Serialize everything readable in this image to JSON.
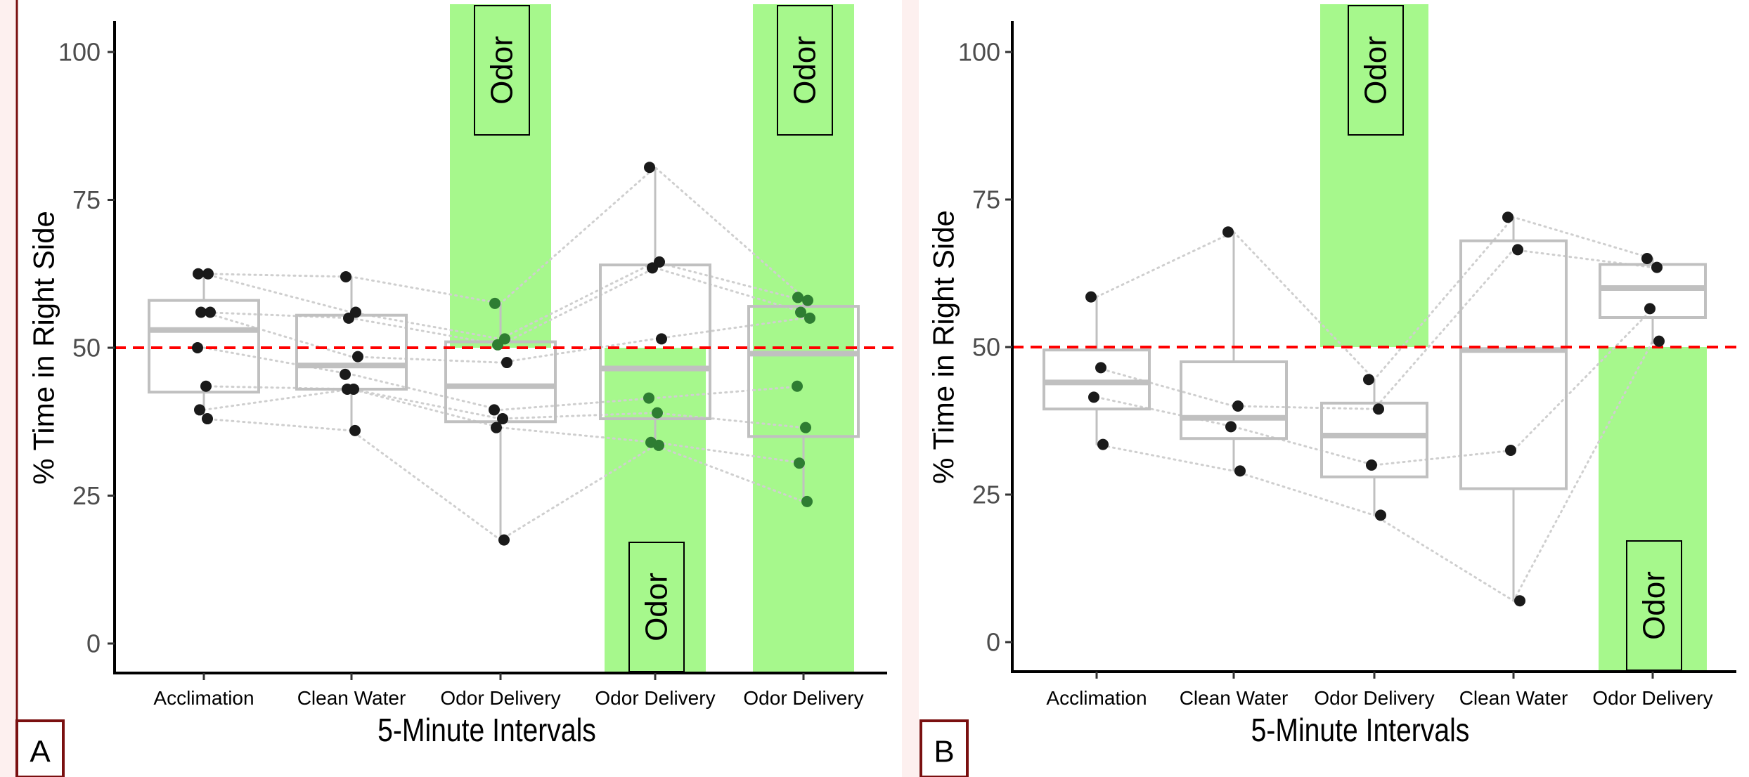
{
  "figure": {
    "colors": {
      "odor_band": "#a6f88c",
      "box": "#c0c0c0",
      "median": "#c0c0c0",
      "point": "#1a1a1a",
      "point_in_odor": "#2e7d32",
      "reference_line": "#ff0000",
      "panel_label_border": "#7a1010",
      "outer_tint": "#fdf0ef"
    }
  },
  "chart_data": [
    {
      "panel_label": "A",
      "type": "box",
      "xlabel": "5-Minute Intervals",
      "ylabel": "% Time in Right Side",
      "ylim": [
        -5,
        108
      ],
      "yticks": [
        0,
        25,
        50,
        75,
        100
      ],
      "reference_line": 50,
      "categories": [
        "Acclimation",
        "Clean Water",
        "Odor Delivery",
        "Odor Delivery",
        "Odor Delivery"
      ],
      "boxes": [
        {
          "q1": 42.5,
          "median": 53,
          "q3": 58,
          "whisker_low": 38,
          "whisker_high": 63
        },
        {
          "q1": 43,
          "median": 47,
          "q3": 55.5,
          "whisker_low": 36,
          "whisker_high": 62
        },
        {
          "q1": 37.5,
          "median": 43.5,
          "q3": 51,
          "whisker_low": 17.5,
          "whisker_high": 57.5
        },
        {
          "q1": 38,
          "median": 46.5,
          "q3": 64,
          "whisker_low": 33.5,
          "whisker_high": 80.5
        },
        {
          "q1": 35,
          "median": 49,
          "q3": 57,
          "whisker_low": 24,
          "whisker_high": 58.5
        }
      ],
      "points": [
        [
          62.5,
          62.5,
          56,
          56,
          50,
          43.5,
          39.5,
          38
        ],
        [
          62,
          56,
          55,
          48.5,
          45.5,
          43,
          43,
          36
        ],
        [
          57.5,
          51.5,
          50.5,
          47.5,
          39.5,
          38,
          36.5,
          17.5
        ],
        [
          80.5,
          64.5,
          63.5,
          51.5,
          41.5,
          39,
          34,
          33.5
        ],
        [
          58.5,
          58,
          56,
          55,
          43.5,
          36.5,
          30.5,
          24
        ]
      ],
      "odor_bands": [
        {
          "category": 3,
          "from": 50,
          "to": 108
        },
        {
          "category": 4,
          "from": -5,
          "to": 50
        },
        {
          "category": 5,
          "from": -5,
          "to": 108
        }
      ],
      "odor_labels": [
        {
          "text": "Odor",
          "category": 3,
          "position": "top"
        },
        {
          "text": "Odor",
          "category": 4,
          "position": "bottom"
        },
        {
          "text": "Odor",
          "category": 5,
          "position": "top"
        }
      ]
    },
    {
      "panel_label": "B",
      "type": "box",
      "xlabel": "5-Minute Intervals",
      "ylabel": "% Time in Right Side",
      "ylim": [
        -5,
        108
      ],
      "yticks": [
        0,
        25,
        50,
        75,
        100
      ],
      "reference_line": 50,
      "categories": [
        "Acclimation",
        "Clean Water",
        "Odor Delivery",
        "Clean Water",
        "Odor Delivery"
      ],
      "boxes": [
        {
          "q1": 39.5,
          "median": 44,
          "q3": 49.5,
          "whisker_low": 33.5,
          "whisker_high": 58.5
        },
        {
          "q1": 34.5,
          "median": 38,
          "q3": 47.5,
          "whisker_low": 29,
          "whisker_high": 69.5
        },
        {
          "q1": 28,
          "median": 35,
          "q3": 40.5,
          "whisker_low": 21.5,
          "whisker_high": 44.5
        },
        {
          "q1": 26,
          "median": 49.5,
          "q3": 68,
          "whisker_low": 7,
          "whisker_high": 72
        },
        {
          "q1": 55,
          "median": 60,
          "q3": 64,
          "whisker_low": 50.5,
          "whisker_high": 65
        }
      ],
      "points": [
        [
          58.5,
          46.5,
          41.5,
          33.5
        ],
        [
          69.5,
          40,
          36.5,
          29
        ],
        [
          44.5,
          39.5,
          30,
          21.5
        ],
        [
          72,
          66.5,
          32.5,
          7
        ],
        [
          65,
          63.5,
          56.5,
          51
        ]
      ],
      "odor_bands": [
        {
          "category": 3,
          "from": 50,
          "to": 108
        },
        {
          "category": 5,
          "from": -5,
          "to": 50
        }
      ],
      "odor_labels": [
        {
          "text": "Odor",
          "category": 3,
          "position": "top"
        },
        {
          "text": "Odor",
          "category": 5,
          "position": "bottom"
        }
      ]
    }
  ]
}
